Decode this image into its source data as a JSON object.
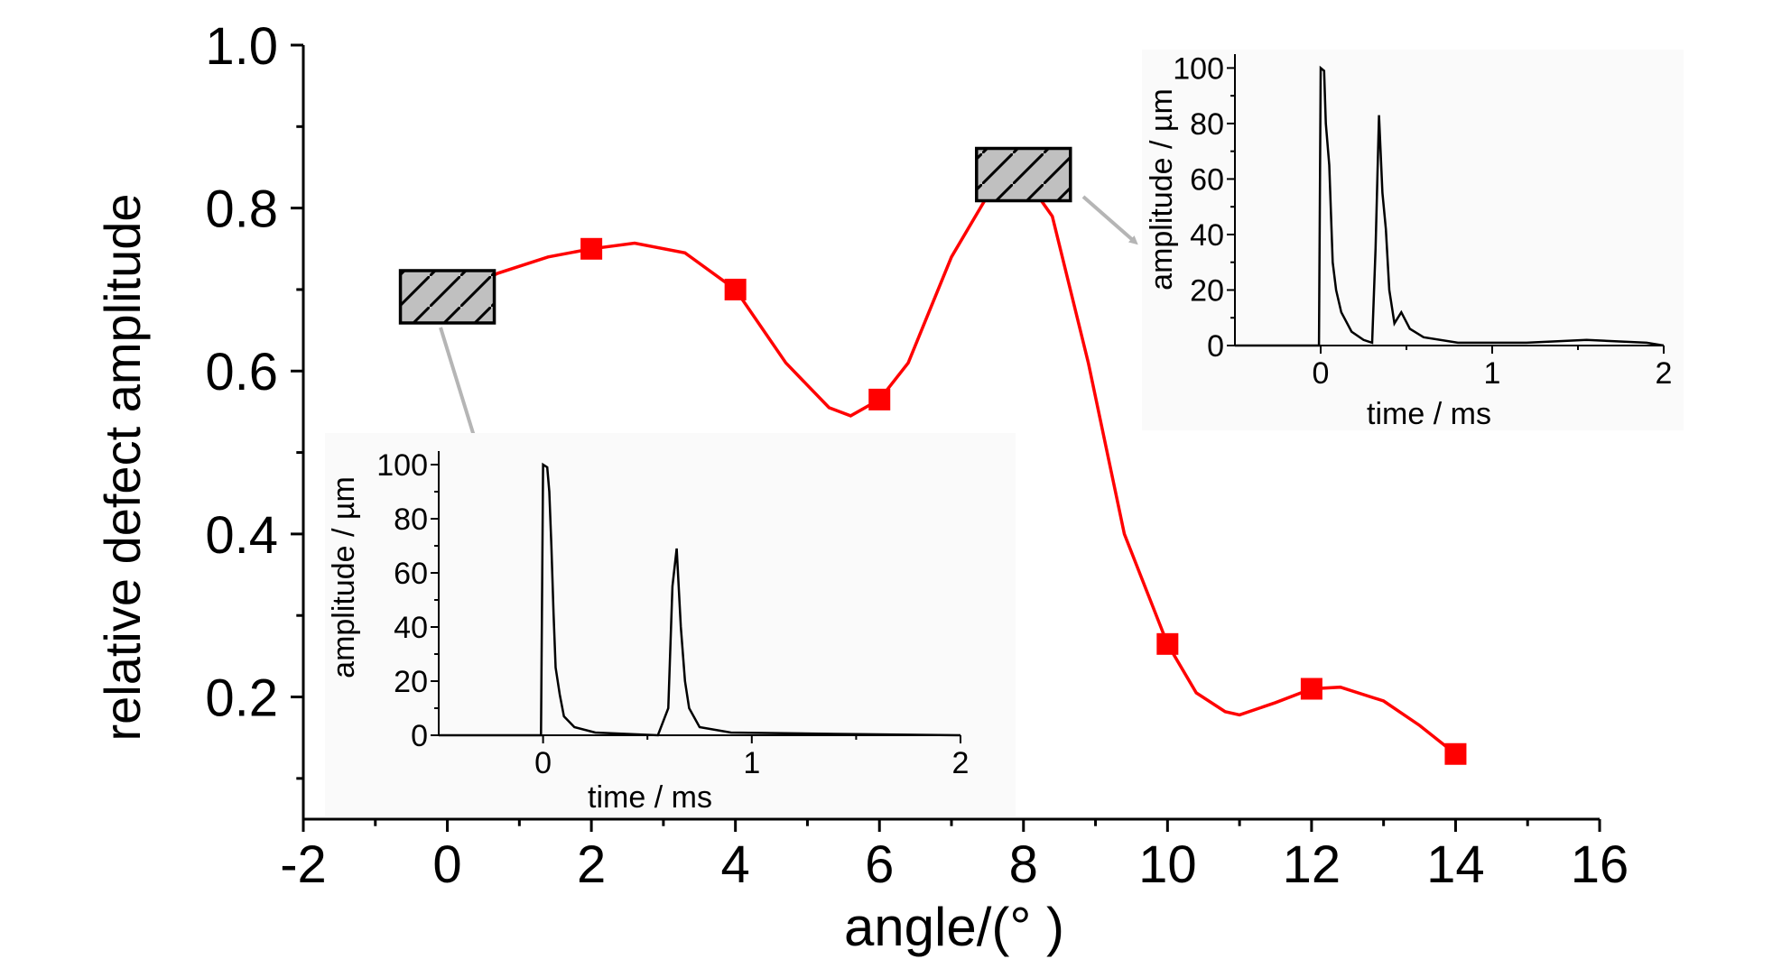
{
  "chart_data": [
    {
      "type": "line",
      "xlabel": "angle/(°  )",
      "ylabel": "relative defect amplitude",
      "xlim": [
        -2,
        16
      ],
      "ylim": [
        0.05,
        1.0
      ],
      "xticks": [
        "-2",
        "0",
        "2",
        "4",
        "6",
        "8",
        "10",
        "12",
        "14",
        "16"
      ],
      "yticks": [
        "0.2",
        "0.4",
        "0.6",
        "0.8",
        "1.0"
      ],
      "series": [
        {
          "color": "#ff0000",
          "marker": "square",
          "points": [
            {
              "x": 0,
              "y": 0.69
            },
            {
              "x": 2,
              "y": 0.75
            },
            {
              "x": 4,
              "y": 0.7
            },
            {
              "x": 6,
              "y": 0.565
            },
            {
              "x": 8,
              "y": 0.84
            },
            {
              "x": 10,
              "y": 0.265
            },
            {
              "x": 12,
              "y": 0.21
            },
            {
              "x": 14,
              "y": 0.13
            }
          ],
          "curve": [
            {
              "x": 0,
              "y": 0.69
            },
            {
              "x": 0.7,
              "y": 0.72
            },
            {
              "x": 1.4,
              "y": 0.74
            },
            {
              "x": 2,
              "y": 0.75
            },
            {
              "x": 2.6,
              "y": 0.757
            },
            {
              "x": 3.3,
              "y": 0.745
            },
            {
              "x": 4,
              "y": 0.7
            },
            {
              "x": 4.7,
              "y": 0.61
            },
            {
              "x": 5.3,
              "y": 0.555
            },
            {
              "x": 5.6,
              "y": 0.545
            },
            {
              "x": 6,
              "y": 0.565
            },
            {
              "x": 6.4,
              "y": 0.61
            },
            {
              "x": 7,
              "y": 0.74
            },
            {
              "x": 7.6,
              "y": 0.83
            },
            {
              "x": 8,
              "y": 0.84
            },
            {
              "x": 8.4,
              "y": 0.79
            },
            {
              "x": 8.9,
              "y": 0.61
            },
            {
              "x": 9.4,
              "y": 0.4
            },
            {
              "x": 10,
              "y": 0.265
            },
            {
              "x": 10.4,
              "y": 0.205
            },
            {
              "x": 10.8,
              "y": 0.182
            },
            {
              "x": 11,
              "y": 0.178
            },
            {
              "x": 11.5,
              "y": 0.193
            },
            {
              "x": 12,
              "y": 0.21
            },
            {
              "x": 12.4,
              "y": 0.212
            },
            {
              "x": 13,
              "y": 0.195
            },
            {
              "x": 13.5,
              "y": 0.165
            },
            {
              "x": 14,
              "y": 0.13
            }
          ]
        }
      ],
      "annotations": [
        {
          "type": "hatched-box",
          "x": 0,
          "y": 0.69,
          "fill": "#c0c0c0"
        },
        {
          "type": "hatched-box",
          "x": 8,
          "y": 0.84,
          "fill": "#c0c0c0"
        }
      ]
    },
    {
      "type": "line",
      "xlabel": "time / ms",
      "ylabel": "amplitude / µm",
      "xlim": [
        -0.5,
        2
      ],
      "ylim": [
        0,
        105
      ],
      "xticks": [
        "0",
        "1",
        "2"
      ],
      "yticks": [
        "0",
        "20",
        "40",
        "60",
        "80",
        "100"
      ],
      "series": [
        {
          "color": "#000000",
          "points": [
            {
              "x": -0.5,
              "y": 0
            },
            {
              "x": -0.01,
              "y": 0
            },
            {
              "x": 0.0,
              "y": 100
            },
            {
              "x": 0.02,
              "y": 99
            },
            {
              "x": 0.03,
              "y": 90
            },
            {
              "x": 0.04,
              "y": 70
            },
            {
              "x": 0.05,
              "y": 45
            },
            {
              "x": 0.06,
              "y": 25
            },
            {
              "x": 0.08,
              "y": 15
            },
            {
              "x": 0.1,
              "y": 7
            },
            {
              "x": 0.15,
              "y": 3
            },
            {
              "x": 0.25,
              "y": 1
            },
            {
              "x": 0.55,
              "y": 0
            },
            {
              "x": 0.6,
              "y": 10
            },
            {
              "x": 0.62,
              "y": 55
            },
            {
              "x": 0.64,
              "y": 69
            },
            {
              "x": 0.66,
              "y": 40
            },
            {
              "x": 0.68,
              "y": 20
            },
            {
              "x": 0.7,
              "y": 10
            },
            {
              "x": 0.75,
              "y": 3
            },
            {
              "x": 0.9,
              "y": 1
            },
            {
              "x": 1.4,
              "y": 0.5
            },
            {
              "x": 2,
              "y": 0
            }
          ]
        }
      ]
    },
    {
      "type": "line",
      "xlabel": "time / ms",
      "ylabel": "amplitude / µm",
      "xlim": [
        -0.5,
        2
      ],
      "ylim": [
        0,
        105
      ],
      "xticks": [
        "0",
        "1",
        "2"
      ],
      "yticks": [
        "0",
        "20",
        "40",
        "60",
        "80",
        "100"
      ],
      "series": [
        {
          "color": "#000000",
          "points": [
            {
              "x": -0.5,
              "y": 0
            },
            {
              "x": -0.01,
              "y": 0
            },
            {
              "x": 0.0,
              "y": 100
            },
            {
              "x": 0.02,
              "y": 99
            },
            {
              "x": 0.03,
              "y": 80
            },
            {
              "x": 0.05,
              "y": 65
            },
            {
              "x": 0.07,
              "y": 30
            },
            {
              "x": 0.09,
              "y": 20
            },
            {
              "x": 0.12,
              "y": 12
            },
            {
              "x": 0.18,
              "y": 5
            },
            {
              "x": 0.25,
              "y": 2
            },
            {
              "x": 0.3,
              "y": 1
            },
            {
              "x": 0.32,
              "y": 35
            },
            {
              "x": 0.34,
              "y": 83
            },
            {
              "x": 0.36,
              "y": 55
            },
            {
              "x": 0.38,
              "y": 42
            },
            {
              "x": 0.4,
              "y": 20
            },
            {
              "x": 0.43,
              "y": 8
            },
            {
              "x": 0.47,
              "y": 12
            },
            {
              "x": 0.52,
              "y": 6
            },
            {
              "x": 0.6,
              "y": 3
            },
            {
              "x": 0.8,
              "y": 1
            },
            {
              "x": 1.2,
              "y": 1
            },
            {
              "x": 1.55,
              "y": 2
            },
            {
              "x": 1.9,
              "y": 1
            },
            {
              "x": 2,
              "y": 0
            }
          ]
        }
      ]
    }
  ]
}
